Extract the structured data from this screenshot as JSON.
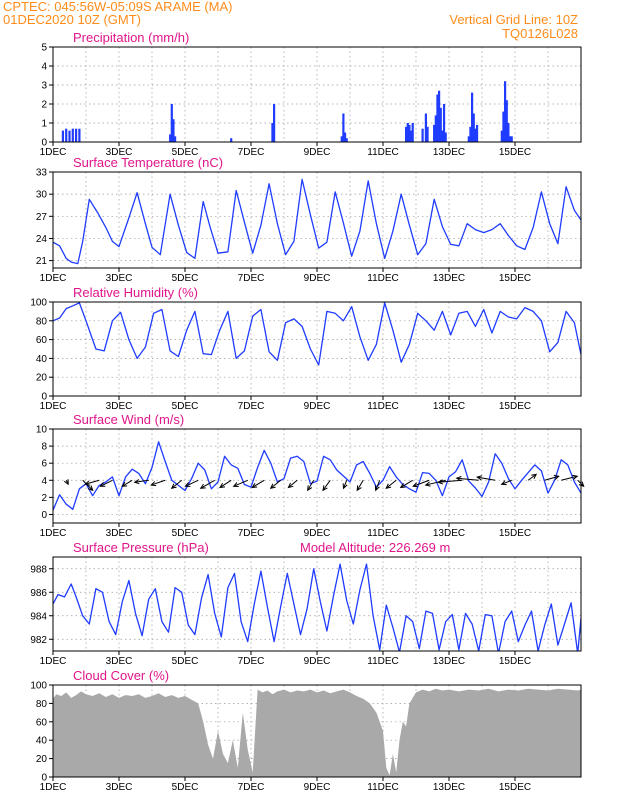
{
  "header": {
    "line1_left": "CPTEC:   045:56W-05:09S   ARAME (MA)",
    "line2_left": "01DEC2020 10Z (GMT)",
    "line1_right": "Vertical Grid Line: 10Z",
    "line2_right": "TQ0126L028"
  },
  "colors": {
    "header": "#ff8c1a",
    "panel_title": "#e0158a",
    "series": "#1f3cff",
    "cloud": "#a9a9a9",
    "grid": "#9a9a9a"
  },
  "x_tick_labels": [
    "1DEC",
    "3DEC",
    "5DEC",
    "7DEC",
    "9DEC",
    "11DEC",
    "13DEC",
    "15DEC"
  ],
  "x_start_label": "1DEC 2020 10Z",
  "chart_data": [
    {
      "id": "precip",
      "type": "bar",
      "title": "Precipitation (mm/h)",
      "x_unit": "days since 1DEC 00Z",
      "ylim": [
        0,
        5
      ],
      "yticks": [
        0,
        1,
        2,
        3,
        4,
        5
      ],
      "x": [
        0.3,
        0.4,
        0.5,
        0.6,
        0.7,
        0.8,
        3.55,
        3.6,
        3.65,
        3.7,
        5.4,
        6.65,
        6.7,
        8.75,
        8.8,
        8.85,
        8.9,
        10.7,
        10.75,
        10.8,
        10.85,
        10.9,
        11.2,
        11.3,
        11.35,
        11.55,
        11.6,
        11.65,
        11.7,
        11.75,
        11.8,
        11.85,
        11.9,
        12.6,
        12.65,
        12.7,
        12.75,
        12.8,
        12.85,
        13.6,
        13.65,
        13.7,
        13.75,
        13.8,
        13.85,
        13.9
      ],
      "values": [
        0.6,
        0.7,
        0.6,
        0.7,
        0.7,
        0.7,
        0.4,
        2.0,
        1.2,
        0.3,
        0.2,
        1.0,
        2.0,
        0.3,
        1.5,
        0.5,
        0.2,
        0.8,
        1.0,
        0.9,
        0.6,
        1.0,
        0.7,
        1.5,
        0.8,
        0.9,
        1.4,
        2.5,
        2.7,
        1.8,
        0.6,
        2.0,
        0.5,
        0.3,
        0.8,
        2.6,
        1.5,
        0.7,
        0.9,
        0.6,
        1.6,
        3.2,
        2.2,
        1.0,
        0.3,
        0.3
      ]
    },
    {
      "id": "temp",
      "type": "line",
      "title": "Surface Temperature (nC)",
      "x_unit": "days since 1DEC 00Z",
      "ylim": [
        20,
        33
      ],
      "yticks": [
        21,
        24,
        27,
        30,
        33
      ],
      "x": [
        0.0,
        0.2,
        0.4,
        0.55,
        0.75,
        0.9,
        1.1,
        1.35,
        1.6,
        1.8,
        2.0,
        2.3,
        2.55,
        2.8,
        3.0,
        3.25,
        3.55,
        3.8,
        4.05,
        4.3,
        4.55,
        4.75,
        5.0,
        5.3,
        5.55,
        5.8,
        6.05,
        6.3,
        6.55,
        6.8,
        7.05,
        7.3,
        7.55,
        7.8,
        8.05,
        8.3,
        8.55,
        8.8,
        9.05,
        9.3,
        9.55,
        9.8,
        10.05,
        10.3,
        10.55,
        10.8,
        11.05,
        11.3,
        11.55,
        11.8,
        12.05,
        12.3,
        12.55,
        12.8,
        13.05,
        13.3,
        13.55,
        13.8,
        14.05,
        14.3,
        14.55,
        14.8,
        15.05,
        15.3,
        15.55,
        15.8,
        16.0
      ],
      "values": [
        23.5,
        23.0,
        21.3,
        20.8,
        20.6,
        23.6,
        29.3,
        27.5,
        25.5,
        23.6,
        22.9,
        26.8,
        30.2,
        26.0,
        22.8,
        21.8,
        30.0,
        25.8,
        22.1,
        21.3,
        29.0,
        25.7,
        22.0,
        22.2,
        30.5,
        26.2,
        22.0,
        25.8,
        31.4,
        26.0,
        21.8,
        23.6,
        32.0,
        27.2,
        22.7,
        23.5,
        30.3,
        26.1,
        21.6,
        25.0,
        31.8,
        26.0,
        21.3,
        25.0,
        30.0,
        25.8,
        21.8,
        23.3,
        29.3,
        25.6,
        23.2,
        23.0,
        26.0,
        25.2,
        24.8,
        25.2,
        26.0,
        24.4,
        23.0,
        22.5,
        25.5,
        30.3,
        26.0,
        23.3,
        31.0,
        27.8,
        26.5
      ]
    },
    {
      "id": "rh",
      "type": "line",
      "title": "Relative Humidity (%)",
      "x_unit": "days since 1DEC 00Z",
      "ylim": [
        0,
        100
      ],
      "yticks": [
        0,
        20,
        40,
        60,
        80,
        100
      ],
      "x": [
        0.0,
        0.2,
        0.4,
        0.6,
        0.8,
        1.0,
        1.3,
        1.55,
        1.8,
        2.05,
        2.3,
        2.55,
        2.8,
        3.05,
        3.3,
        3.55,
        3.8,
        4.05,
        4.3,
        4.55,
        4.8,
        5.05,
        5.3,
        5.55,
        5.8,
        6.05,
        6.3,
        6.55,
        6.8,
        7.05,
        7.3,
        7.55,
        7.8,
        8.05,
        8.3,
        8.55,
        8.8,
        9.05,
        9.3,
        9.55,
        9.8,
        10.05,
        10.3,
        10.55,
        10.8,
        11.05,
        11.3,
        11.55,
        11.8,
        12.05,
        12.3,
        12.55,
        12.8,
        13.05,
        13.3,
        13.55,
        13.8,
        14.05,
        14.3,
        14.55,
        14.8,
        15.05,
        15.3,
        15.55,
        15.8,
        16.0
      ],
      "values": [
        80,
        83,
        93,
        96,
        99,
        80,
        50,
        48,
        80,
        89,
        60,
        40,
        52,
        88,
        92,
        48,
        42,
        70,
        90,
        45,
        44,
        70,
        90,
        40,
        48,
        85,
        92,
        47,
        38,
        78,
        82,
        74,
        50,
        33,
        90,
        88,
        80,
        95,
        63,
        38,
        55,
        99,
        70,
        36,
        55,
        88,
        80,
        70,
        90,
        65,
        88,
        90,
        74,
        92,
        67,
        90,
        84,
        82,
        94,
        90,
        80,
        47,
        57,
        90,
        78,
        44
      ]
    },
    {
      "id": "wind",
      "type": "line",
      "title": "Surface Wind (m/s)",
      "x_unit": "days since 1DEC 00Z",
      "ylim": [
        -1,
        10
      ],
      "yticks": [
        0,
        2,
        4,
        6,
        8,
        10
      ],
      "x": [
        0.0,
        0.2,
        0.4,
        0.6,
        0.8,
        1.0,
        1.2,
        1.4,
        1.6,
        1.8,
        2.0,
        2.2,
        2.4,
        2.6,
        2.8,
        3.0,
        3.2,
        3.4,
        3.6,
        3.8,
        4.0,
        4.2,
        4.4,
        4.6,
        4.8,
        5.0,
        5.2,
        5.4,
        5.6,
        5.8,
        6.0,
        6.2,
        6.4,
        6.6,
        6.8,
        7.0,
        7.2,
        7.4,
        7.6,
        7.8,
        8.0,
        8.2,
        8.4,
        8.6,
        8.8,
        9.0,
        9.2,
        9.4,
        9.6,
        9.8,
        10.0,
        10.2,
        10.4,
        10.6,
        10.8,
        11.0,
        11.2,
        11.4,
        11.6,
        11.8,
        12.0,
        12.2,
        12.4,
        12.6,
        12.8,
        13.0,
        13.2,
        13.4,
        13.6,
        13.8,
        14.0,
        14.2,
        14.4,
        14.6,
        14.8,
        15.0,
        15.2,
        15.4,
        15.6,
        15.8,
        16.0
      ],
      "values": [
        0.5,
        2.3,
        1.2,
        0.6,
        3.0,
        3.6,
        2.2,
        3.4,
        3.8,
        4.4,
        2.2,
        4.4,
        5.3,
        4.8,
        3.6,
        5.5,
        8.5,
        6.2,
        4.0,
        3.4,
        2.8,
        4.2,
        6.0,
        5.2,
        3.0,
        3.8,
        6.8,
        5.8,
        5.4,
        3.5,
        3.2,
        5.5,
        7.5,
        6.0,
        3.8,
        4.2,
        6.6,
        6.8,
        6.2,
        3.6,
        3.9,
        6.8,
        6.4,
        5.2,
        4.5,
        3.8,
        5.8,
        6.2,
        4.8,
        3.2,
        4.0,
        5.6,
        4.4,
        3.5,
        3.0,
        2.6,
        4.9,
        4.8,
        4.0,
        2.2,
        4.4,
        5.0,
        6.4,
        3.9,
        3.1,
        2.1,
        3.8,
        7.1,
        6.0,
        4.2,
        3.0,
        4.0,
        4.9,
        5.8,
        5.1,
        2.5,
        4.0,
        6.4,
        5.8,
        3.8,
        2.5
      ],
      "vectors": {
        "x": [
          0.4,
          0.9,
          1.4,
          1.8,
          2.4,
          2.9,
          3.4,
          3.9,
          4.4,
          4.9,
          5.4,
          5.9,
          6.4,
          6.9,
          7.4,
          7.9,
          8.4,
          8.9,
          9.4,
          9.9,
          10.4,
          10.9,
          11.4,
          11.9,
          12.4,
          12.9,
          13.4,
          13.9,
          14.4,
          14.9,
          15.4,
          15.9
        ],
        "u": [
          0.5,
          2.5,
          -3.5,
          -3.0,
          -2.5,
          -3.5,
          -3.5,
          -2.5,
          -3.2,
          -3.5,
          -2.8,
          -3.5,
          -3.0,
          -2.5,
          -2.2,
          -1.5,
          -1.8,
          -0.8,
          -1.5,
          -1.0,
          -2.5,
          -3.0,
          -4.0,
          -5.0,
          -6.0,
          -5.5,
          -4.5,
          -2.5,
          2.0,
          3.5,
          4.0,
          1.5
        ],
        "v": [
          -1.0,
          -2.5,
          -1.0,
          -1.5,
          -1.5,
          -0.5,
          -1.2,
          -2.0,
          -1.5,
          -2.0,
          -1.8,
          -1.5,
          -1.8,
          -2.0,
          -1.8,
          -2.5,
          -2.5,
          -2.0,
          -2.5,
          -2.5,
          -2.0,
          -1.8,
          -1.5,
          -1.2,
          -0.5,
          0.5,
          0.8,
          -1.0,
          1.5,
          1.0,
          1.0,
          -1.5
        ]
      }
    },
    {
      "id": "press",
      "type": "line",
      "title": "Surface Pressure (hPa)",
      "subtitle": "Model Altitude: 226.269 m",
      "x_unit": "days since 1DEC 00Z",
      "ylim": [
        981,
        989
      ],
      "yticks": [
        982,
        984,
        986,
        988
      ],
      "x": [
        0.0,
        0.15,
        0.35,
        0.55,
        0.7,
        0.9,
        1.1,
        1.3,
        1.5,
        1.7,
        1.9,
        2.1,
        2.3,
        2.5,
        2.7,
        2.9,
        3.1,
        3.3,
        3.5,
        3.7,
        3.9,
        4.1,
        4.3,
        4.5,
        4.7,
        4.9,
        5.1,
        5.3,
        5.5,
        5.7,
        5.9,
        6.1,
        6.3,
        6.5,
        6.7,
        6.9,
        7.1,
        7.3,
        7.5,
        7.7,
        7.9,
        8.1,
        8.3,
        8.5,
        8.7,
        8.9,
        9.1,
        9.3,
        9.5,
        9.7,
        9.9,
        10.1,
        10.3,
        10.5,
        10.7,
        10.9,
        11.1,
        11.3,
        11.5,
        11.7,
        11.9,
        12.1,
        12.3,
        12.5,
        12.7,
        12.9,
        13.1,
        13.3,
        13.5,
        13.7,
        13.9,
        14.1,
        14.3,
        14.5,
        14.7,
        14.9,
        15.1,
        15.3,
        15.5,
        15.7,
        15.9,
        16.0
      ],
      "values": [
        985.0,
        985.8,
        985.6,
        986.7,
        985.6,
        984.0,
        983.3,
        986.3,
        986.0,
        983.5,
        982.4,
        985.2,
        987.0,
        984.2,
        982.3,
        985.4,
        986.3,
        983.5,
        982.6,
        986.4,
        986.0,
        983.2,
        982.4,
        985.5,
        987.5,
        984.2,
        982.2,
        986.4,
        987.6,
        983.5,
        981.8,
        985.0,
        987.8,
        984.7,
        981.8,
        984.8,
        987.6,
        985.0,
        982.4,
        984.6,
        988.0,
        985.2,
        982.7,
        985.7,
        988.4,
        985.3,
        983.3,
        986.2,
        988.4,
        984.0,
        981.1,
        984.9,
        983.0,
        980.9,
        984.0,
        983.5,
        981.2,
        984.4,
        984.2,
        981.1,
        983.5,
        984.1,
        981.1,
        984.2,
        983.3,
        981.0,
        984.1,
        984.0,
        980.8,
        983.5,
        984.4,
        981.8,
        983.2,
        984.4,
        981.0,
        983.2,
        985.0,
        981.5,
        983.3,
        985.1,
        980.8,
        983.8
      ]
    },
    {
      "id": "cloud",
      "type": "area",
      "title": "Cloud Cover (%)",
      "x_unit": "days since 1DEC 00Z",
      "ylim": [
        0,
        100
      ],
      "yticks": [
        0,
        20,
        40,
        60,
        80,
        100
      ],
      "x": [
        0.0,
        0.1,
        0.25,
        0.4,
        0.55,
        0.7,
        0.85,
        1.0,
        1.2,
        1.4,
        1.6,
        1.8,
        2.0,
        2.2,
        2.4,
        2.6,
        2.8,
        3.0,
        3.2,
        3.4,
        3.6,
        3.8,
        4.0,
        4.2,
        4.4,
        4.55,
        4.7,
        4.85,
        5.0,
        5.15,
        5.3,
        5.45,
        5.6,
        5.75,
        5.9,
        6.05,
        6.2,
        6.35,
        6.5,
        6.65,
        6.8,
        7.0,
        7.2,
        7.4,
        7.6,
        7.8,
        8.0,
        8.2,
        8.4,
        8.6,
        8.8,
        9.0,
        9.2,
        9.4,
        9.6,
        9.8,
        10.0,
        10.1,
        10.2,
        10.3,
        10.4,
        10.5,
        10.6,
        10.7,
        10.8,
        11.0,
        11.2,
        11.4,
        11.6,
        11.8,
        12.0,
        12.3,
        12.6,
        12.9,
        13.2,
        13.5,
        13.8,
        14.1,
        14.4,
        14.7,
        15.0,
        15.3,
        15.6,
        15.9,
        16.0
      ],
      "values": [
        85,
        90,
        88,
        92,
        86,
        89,
        93,
        90,
        88,
        91,
        87,
        90,
        86,
        89,
        88,
        90,
        86,
        88,
        91,
        87,
        89,
        86,
        88,
        84,
        80,
        60,
        35,
        20,
        50,
        25,
        15,
        40,
        10,
        70,
        30,
        5,
        95,
        92,
        94,
        90,
        93,
        95,
        92,
        94,
        93,
        95,
        92,
        94,
        91,
        93,
        95,
        92,
        88,
        85,
        80,
        70,
        50,
        10,
        2,
        25,
        5,
        40,
        60,
        55,
        80,
        92,
        95,
        93,
        96,
        94,
        95,
        93,
        95,
        94,
        96,
        93,
        95,
        94,
        96,
        95,
        94,
        96,
        95,
        94,
        95
      ]
    }
  ]
}
